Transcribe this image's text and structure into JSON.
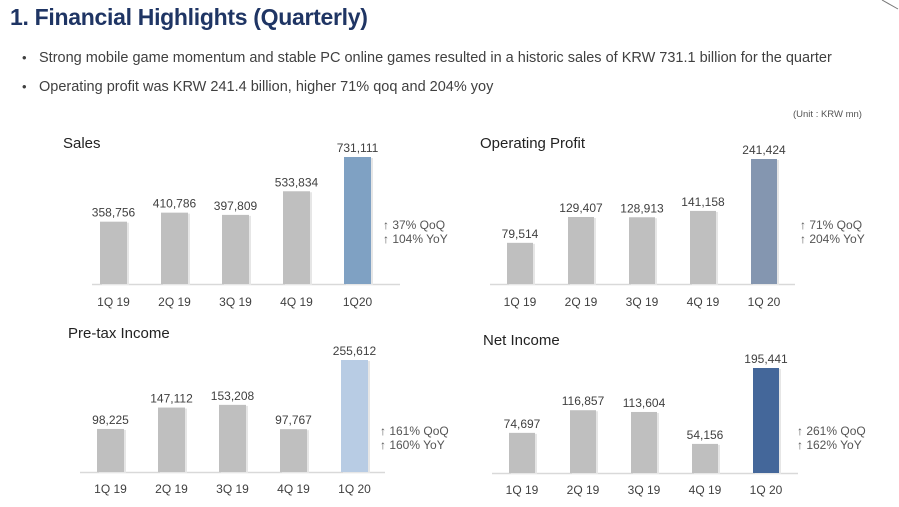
{
  "header": {
    "title": "1. Financial Highlights (Quarterly)",
    "bullets": [
      "Strong mobile game momentum and stable PC online games resulted in a historic sales of KRW 731.1 billion for the quarter",
      "Operating profit was KRW 241.4 billion, higher 71% qoq and 204% yoy"
    ],
    "bullet_glyph": "•",
    "unit": "(Unit : KRW mn)"
  },
  "colors": {
    "title": "#1f3564",
    "bar_default": "#bfbfbf",
    "axis": "#d9d9d9"
  },
  "chart_data": [
    {
      "type": "bar",
      "title": "Sales",
      "categories": [
        "1Q 19",
        "2Q 19",
        "3Q 19",
        "4Q 19",
        "1Q20"
      ],
      "values": [
        358756,
        410786,
        397809,
        533834,
        731111
      ],
      "labels": [
        "358,756",
        "410,786",
        "397,809",
        "533,834",
        "731,111"
      ],
      "highlight_color": "#7fa1c3",
      "growth": [
        "↑ 37% QoQ",
        "↑ 104% YoY"
      ],
      "xlabel": "",
      "ylabel": "",
      "ylim": [
        0,
        731111
      ],
      "grid": false
    },
    {
      "type": "bar",
      "title": "Operating Profit",
      "categories": [
        "1Q 19",
        "2Q 19",
        "3Q 19",
        "4Q 19",
        "1Q 20"
      ],
      "values": [
        79514,
        129407,
        128913,
        141158,
        241424
      ],
      "labels": [
        "79,514",
        "129,407",
        "128,913",
        "141,158",
        "241,424"
      ],
      "highlight_color": "#8496b0",
      "growth": [
        "↑ 71% QoQ",
        "↑ 204% YoY"
      ],
      "xlabel": "",
      "ylabel": "",
      "ylim": [
        0,
        241424
      ],
      "grid": false
    },
    {
      "type": "bar",
      "title": "Pre-tax Income",
      "categories": [
        "1Q 19",
        "2Q 19",
        "3Q 19",
        "4Q 19",
        "1Q 20"
      ],
      "values": [
        98225,
        147112,
        153208,
        97767,
        255612
      ],
      "labels": [
        "98,225",
        "147,112",
        "153,208",
        "97,767",
        "255,612"
      ],
      "highlight_color": "#b8cce4",
      "growth": [
        "↑ 161% QoQ",
        "↑ 160% YoY"
      ],
      "xlabel": "",
      "ylabel": "",
      "ylim": [
        0,
        255612
      ],
      "grid": false
    },
    {
      "type": "bar",
      "title": "Net Income",
      "categories": [
        "1Q 19",
        "2Q 19",
        "3Q 19",
        "4Q 19",
        "1Q 20"
      ],
      "values": [
        74697,
        116857,
        113604,
        54156,
        195441
      ],
      "labels": [
        "74,697",
        "116,857",
        "113,604",
        "54,156",
        "195,441"
      ],
      "highlight_color": "#44679a",
      "growth": [
        "↑ 261% QoQ",
        "↑ 162% YoY"
      ],
      "xlabel": "",
      "ylabel": "",
      "ylim": [
        0,
        195441
      ],
      "grid": false
    }
  ]
}
